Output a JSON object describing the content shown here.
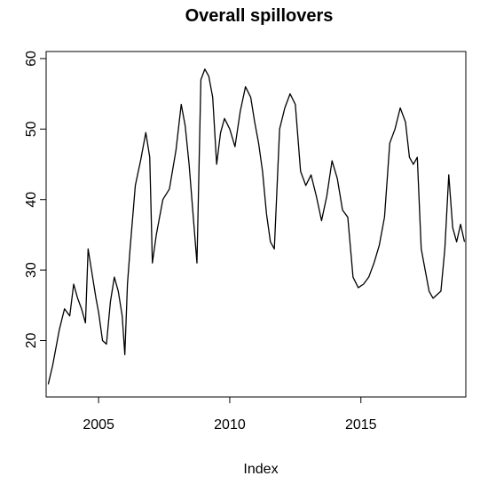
{
  "chart_data": {
    "type": "line",
    "title": "Overall spillovers",
    "xlabel": "Index",
    "ylabel": "",
    "xlim": [
      2003.0,
      2019.0
    ],
    "ylim": [
      12,
      61
    ],
    "x_ticks": [
      2005,
      2010,
      2015
    ],
    "x_tick_labels": [
      "2005",
      "2010",
      "2015"
    ],
    "y_ticks": [
      20,
      30,
      40,
      50,
      60
    ],
    "y_tick_labels": [
      "20",
      "30",
      "40",
      "50",
      "60"
    ],
    "grid": false,
    "legend": "none",
    "line_color": "#000000",
    "series": [
      {
        "x": [
          2003.08,
          2003.25,
          2003.5,
          2003.7,
          2003.9,
          2004.05,
          2004.2,
          2004.35,
          2004.5,
          2004.6,
          2004.75,
          2004.9,
          2005.0,
          2005.15,
          2005.3,
          2005.45,
          2005.6,
          2005.75,
          2005.9,
          2006.0,
          2006.1,
          2006.2,
          2006.4,
          2006.6,
          2006.8,
          2006.95,
          2007.05,
          2007.2,
          2007.45,
          2007.7,
          2007.95,
          2008.15,
          2008.3,
          2008.45,
          2008.6,
          2008.75,
          2008.9,
          2009.05,
          2009.2,
          2009.35,
          2009.5,
          2009.65,
          2009.8,
          2010.0,
          2010.2,
          2010.4,
          2010.6,
          2010.8,
          2010.95,
          2011.1,
          2011.25,
          2011.4,
          2011.55,
          2011.7,
          2011.9,
          2012.1,
          2012.3,
          2012.5,
          2012.7,
          2012.9,
          2013.1,
          2013.3,
          2013.5,
          2013.7,
          2013.9,
          2014.1,
          2014.3,
          2014.5,
          2014.7,
          2014.9,
          2015.1,
          2015.3,
          2015.5,
          2015.7,
          2015.9,
          2016.1,
          2016.3,
          2016.5,
          2016.7,
          2016.85,
          2017.0,
          2017.15,
          2017.3,
          2017.45,
          2017.6,
          2017.75,
          2017.9,
          2018.05,
          2018.2,
          2018.35,
          2018.5,
          2018.65,
          2018.8,
          2018.95
        ],
        "values": [
          13.8,
          16.5,
          21.5,
          24.5,
          23.5,
          28.0,
          26.0,
          24.5,
          22.5,
          33.0,
          29.5,
          26.0,
          24.0,
          20.0,
          19.5,
          25.5,
          29.0,
          27.0,
          23.5,
          18.0,
          28.0,
          33.0,
          42.0,
          45.5,
          49.5,
          46.0,
          31.0,
          35.0,
          40.0,
          41.5,
          47.0,
          53.5,
          50.5,
          45.0,
          38.0,
          31.0,
          57.0,
          58.5,
          57.5,
          54.5,
          45.0,
          49.5,
          51.5,
          50.0,
          47.5,
          52.5,
          56.0,
          54.5,
          51.0,
          48.0,
          44.0,
          38.0,
          34.0,
          33.0,
          50.0,
          53.0,
          55.0,
          53.5,
          44.0,
          42.0,
          43.5,
          40.5,
          37.0,
          40.5,
          45.5,
          43.0,
          38.5,
          37.5,
          29.0,
          27.5,
          28.0,
          29.0,
          31.0,
          33.5,
          37.5,
          48.0,
          50.0,
          53.0,
          51.0,
          46.0,
          45.0,
          46.0,
          33.0,
          30.0,
          27.0,
          26.0,
          26.5,
          27.0,
          33.0,
          43.5,
          36.0,
          34.0,
          36.5,
          34.0
        ]
      }
    ]
  }
}
